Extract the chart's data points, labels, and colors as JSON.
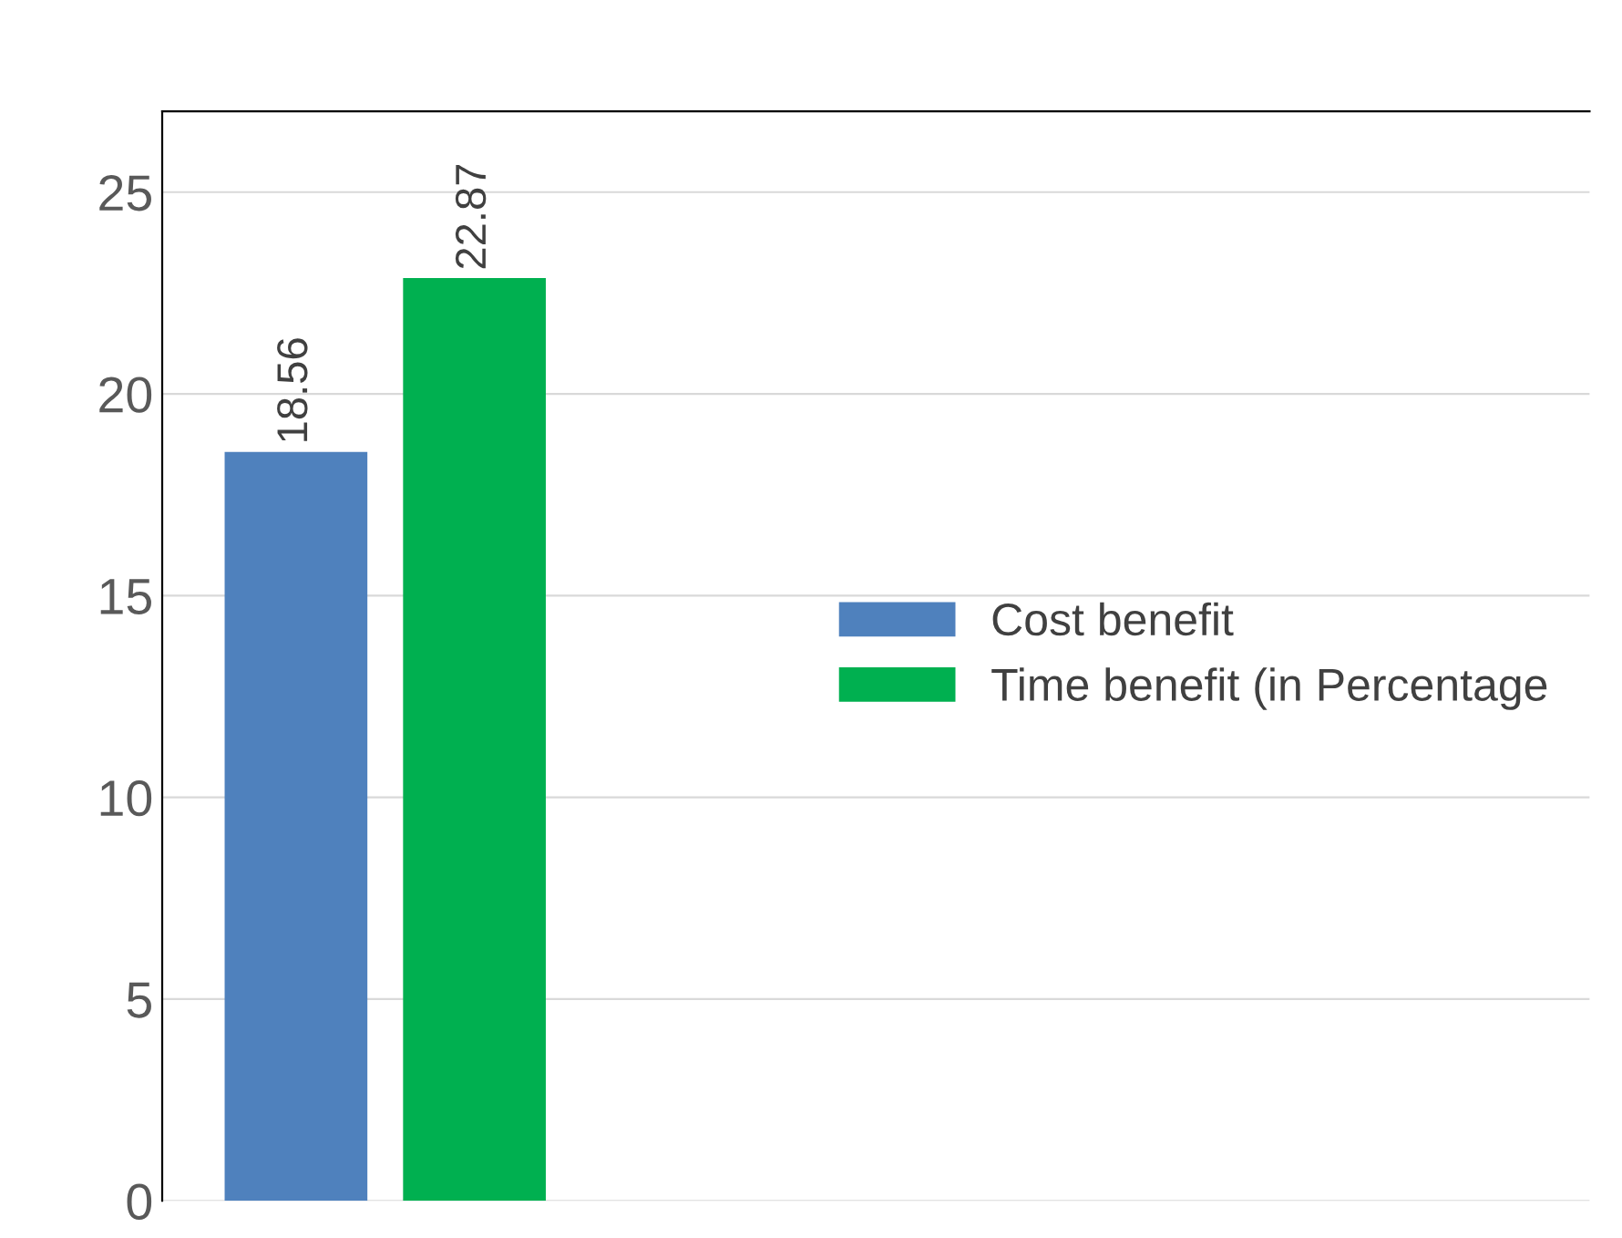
{
  "chart_data": {
    "type": "bar",
    "categories": [
      null
    ],
    "series": [
      {
        "name": "Cost benefit",
        "color": "#4f81bd",
        "values": [
          18.56
        ]
      },
      {
        "name": "Time benefit (in Percentage",
        "color": "#00b050",
        "values": [
          22.87
        ]
      }
    ],
    "ylim": [
      0,
      27
    ],
    "yticks": [
      0,
      5,
      10,
      15,
      20,
      25
    ],
    "grid": "y",
    "legend": "right",
    "data_labels": true
  }
}
